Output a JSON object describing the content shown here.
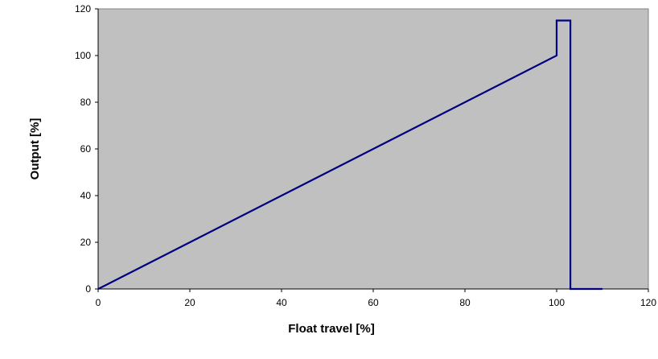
{
  "chart_data": {
    "type": "line",
    "title": "",
    "xlabel": "Float travel [%]",
    "ylabel": "Output [%]",
    "xlim": [
      0,
      120
    ],
    "ylim": [
      0,
      120
    ],
    "x_ticks": [
      0,
      20,
      40,
      60,
      80,
      100,
      120
    ],
    "y_ticks": [
      0,
      20,
      40,
      60,
      80,
      100,
      120
    ],
    "grid": false,
    "legend": "none",
    "plot_background": "#c0c0c0",
    "series": [
      {
        "color": "#000080",
        "points": [
          {
            "x": 0,
            "y": 0
          },
          {
            "x": 100,
            "y": 100
          },
          {
            "x": 100,
            "y": 115
          },
          {
            "x": 103,
            "y": 115
          },
          {
            "x": 103,
            "y": 0
          },
          {
            "x": 110,
            "y": 0
          }
        ]
      }
    ]
  }
}
